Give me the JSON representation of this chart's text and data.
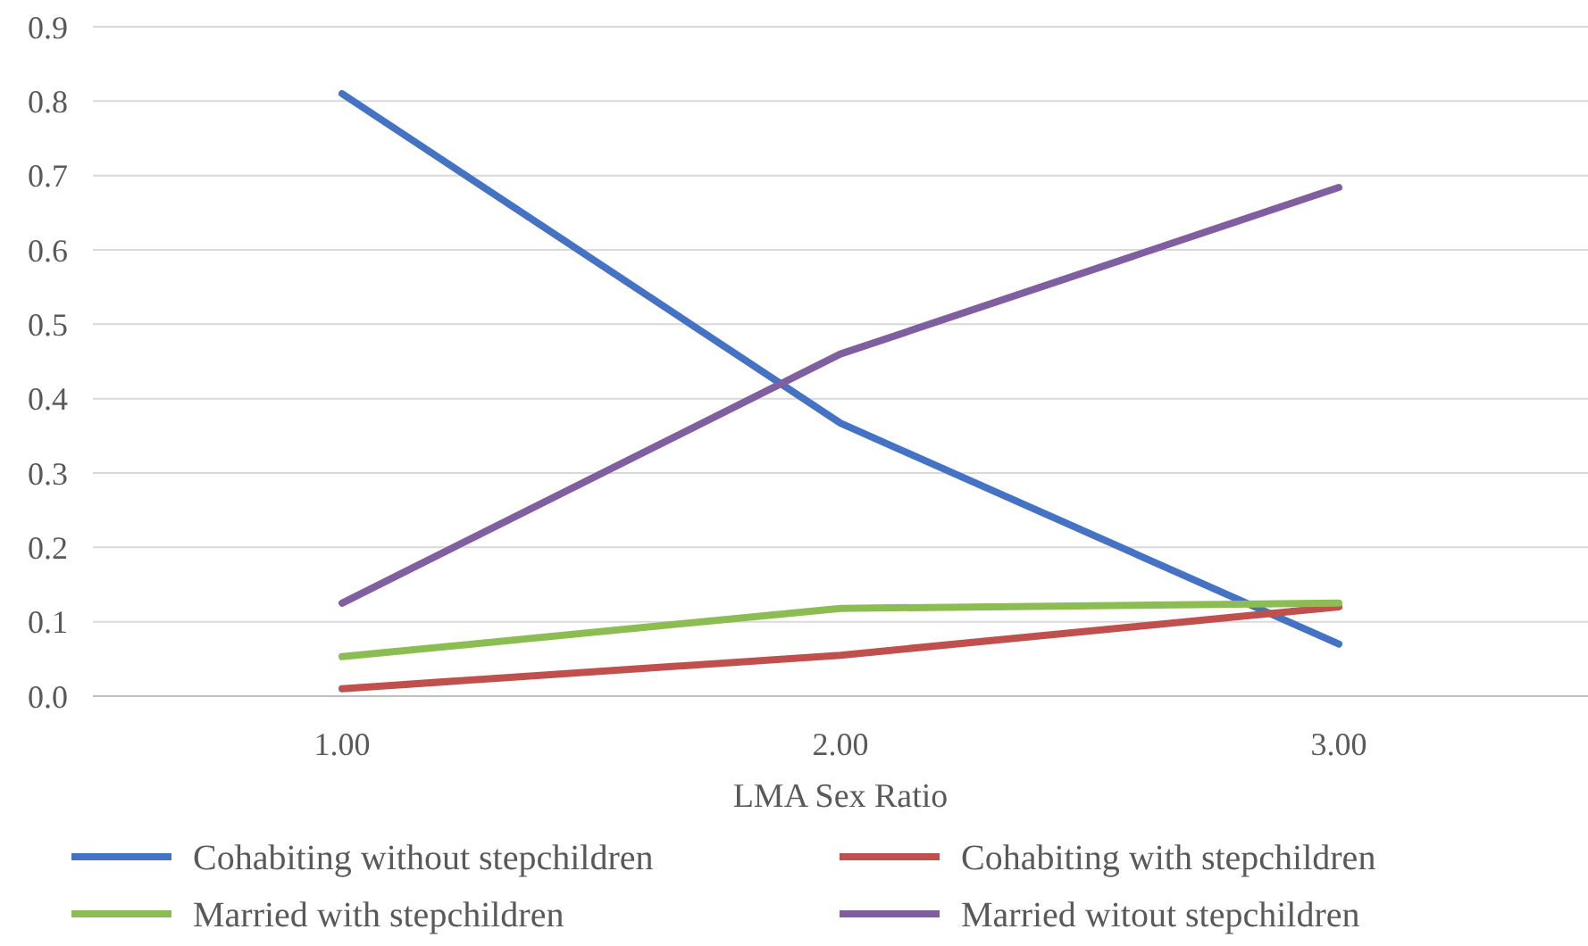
{
  "chart_data": {
    "type": "line",
    "xlabel": "LMA Sex Ratio",
    "categories": [
      "1.00",
      "2.00",
      "3.00"
    ],
    "series": [
      {
        "name": "Cohabiting without stepchildren",
        "color": "#4472c4",
        "values": [
          0.81,
          0.367,
          0.07
        ]
      },
      {
        "name": "Cohabiting with stepchildren",
        "color": "#c0504d",
        "values": [
          0.01,
          0.055,
          0.12
        ]
      },
      {
        "name": "Married with stepchildren",
        "color": "#8cbd52",
        "values": [
          0.053,
          0.118,
          0.125
        ]
      },
      {
        "name": "Married witout stepchildren",
        "color": "#7f5f9f",
        "values": [
          0.125,
          0.46,
          0.684
        ]
      }
    ],
    "ylim": [
      0,
      0.9
    ],
    "yticks": [
      {
        "value": 0,
        "label": "0.0"
      },
      {
        "value": 0.1,
        "label": "0.1"
      },
      {
        "value": 0.2,
        "label": "0.2"
      },
      {
        "value": 0.3,
        "label": "0.3"
      },
      {
        "value": 0.4,
        "label": "0.4"
      },
      {
        "value": 0.5,
        "label": "0.5"
      },
      {
        "value": 0.6,
        "label": "0.6"
      },
      {
        "value": 0.7,
        "label": "0.7"
      },
      {
        "value": 0.8,
        "label": "0.8"
      },
      {
        "value": 0.9,
        "label": "0.9"
      }
    ],
    "grid": "y",
    "legend": "bottom",
    "marker": "none",
    "line_style": "solid"
  }
}
